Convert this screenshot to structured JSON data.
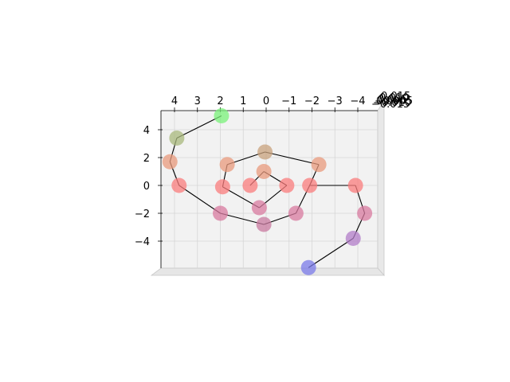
{
  "chart_data": {
    "type": "scatter",
    "projection": "3d",
    "title": "",
    "xlabel": "",
    "ylabel": "",
    "zlabel": "",
    "grid": true,
    "pane_color": "#f2f2f2",
    "line_color": "#000000",
    "x_axis_direction": "decreasing-right",
    "x_ticks": [
      4,
      3,
      2,
      1,
      0,
      -1,
      -2,
      -3,
      -4
    ],
    "x_tick_labels": [
      "4",
      "3",
      "2",
      "1",
      "0",
      "−1",
      "−2",
      "−3",
      "−4"
    ],
    "y_ticks": [
      4,
      2,
      0,
      -2,
      -4
    ],
    "y_tick_labels": [
      "4",
      "2",
      "0",
      "−2",
      "−4"
    ],
    "xlim": [
      -4.6,
      4.6
    ],
    "ylim": [
      -6.0,
      5.0
    ],
    "z_tick_labels": [
      "0.015",
      "0.010",
      "0.005",
      "0.000",
      "−0.005",
      "−0.010",
      "−0.015"
    ],
    "points": [
      {
        "x": 0.7,
        "y": 0.0,
        "color": "#fa7c7c"
      },
      {
        "x": 0.1,
        "y": 1.0,
        "color": "#e89a7c"
      },
      {
        "x": -0.9,
        "y": 0.0,
        "color": "#fa7c7c"
      },
      {
        "x": 0.3,
        "y": -1.6,
        "color": "#d8799f"
      },
      {
        "x": 1.9,
        "y": -0.1,
        "color": "#fa7c7c"
      },
      {
        "x": 1.7,
        "y": 1.5,
        "color": "#e89a7c"
      },
      {
        "x": 0.05,
        "y": 2.4,
        "color": "#c8a27c"
      },
      {
        "x": -2.3,
        "y": 1.5,
        "color": "#e89a7c"
      },
      {
        "x": -1.9,
        "y": 0.0,
        "color": "#fa7c7c"
      },
      {
        "x": -1.3,
        "y": -2.0,
        "color": "#d8799f"
      },
      {
        "x": 0.1,
        "y": -2.8,
        "color": "#c8799f"
      },
      {
        "x": 2.0,
        "y": -2.0,
        "color": "#d8799f"
      },
      {
        "x": 3.8,
        "y": 0.0,
        "color": "#fa7c7c"
      },
      {
        "x": 4.2,
        "y": 1.7,
        "color": "#e89a7c"
      },
      {
        "x": 3.9,
        "y": 3.4,
        "color": "#a8b87c"
      },
      {
        "x": 1.95,
        "y": 5.0,
        "color": "#7af27a"
      },
      {
        "x": -3.9,
        "y": 0.0,
        "color": "#fa7c7c"
      },
      {
        "x": -4.3,
        "y": -2.0,
        "color": "#d8799f"
      },
      {
        "x": -3.8,
        "y": -3.8,
        "color": "#b27cc8"
      },
      {
        "x": -1.85,
        "y": -5.9,
        "color": "#7a7ae8"
      }
    ],
    "line_order": [
      0,
      1,
      2,
      3,
      4,
      5,
      6,
      7,
      8,
      9,
      10,
      11,
      12,
      13,
      14,
      15,
      16,
      17,
      18,
      19
    ],
    "line_segments": [
      [
        0,
        1
      ],
      [
        1,
        2
      ],
      [
        2,
        3
      ],
      [
        3,
        4
      ],
      [
        4,
        5
      ],
      [
        5,
        6
      ],
      [
        6,
        7
      ],
      [
        7,
        8
      ],
      [
        8,
        9
      ],
      [
        9,
        10
      ],
      [
        10,
        11
      ],
      [
        11,
        12
      ],
      [
        12,
        13
      ],
      [
        13,
        14
      ],
      [
        14,
        15
      ],
      [
        8,
        16
      ],
      [
        16,
        17
      ],
      [
        17,
        18
      ],
      [
        18,
        19
      ]
    ]
  }
}
